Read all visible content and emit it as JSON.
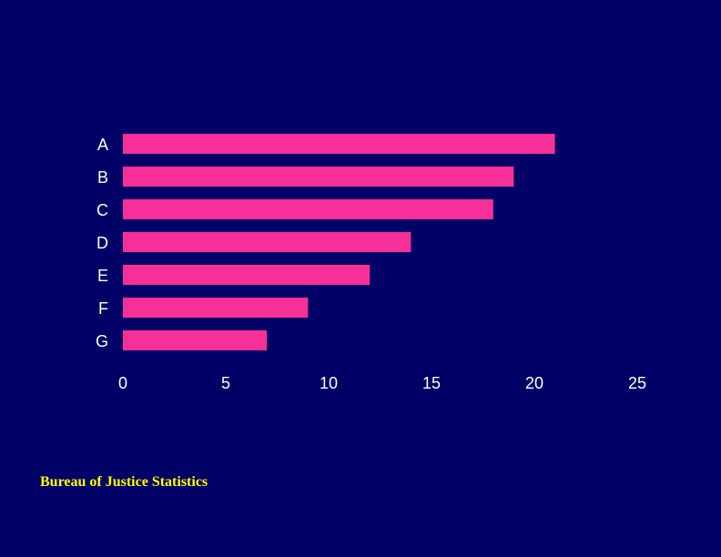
{
  "chart_data": {
    "type": "bar",
    "orientation": "horizontal",
    "categories": [
      "A",
      "B",
      "C",
      "D",
      "E",
      "F",
      "G"
    ],
    "values": [
      21,
      19,
      18,
      14,
      12,
      9,
      7
    ],
    "x_ticks": [
      "0",
      "5",
      "10",
      "15",
      "20",
      "25"
    ],
    "xlim": [
      0,
      25
    ],
    "title": "",
    "xlabel": "",
    "ylabel": "",
    "grid": false,
    "bar_color": "#f72f99"
  },
  "footer": {
    "source": "Bureau of Justice Statistics"
  },
  "colors": {
    "background": "#000066",
    "text": "#ffffff",
    "source_text": "#ffff00"
  }
}
